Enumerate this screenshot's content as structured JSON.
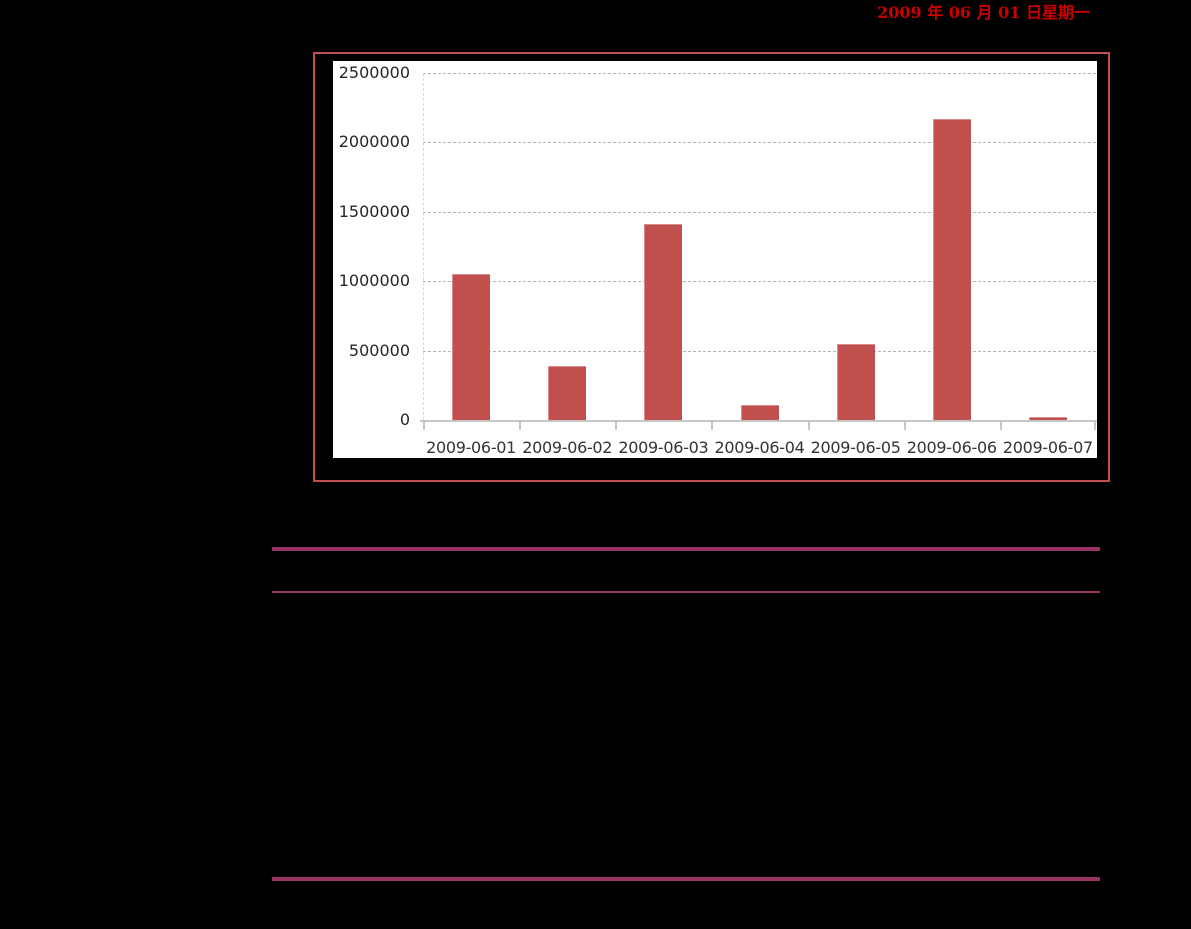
{
  "header": {
    "date_text": "2009 年 06 月 01 日星期一",
    "date_color": "#CC0000"
  },
  "chart_data": {
    "type": "bar",
    "title": "",
    "xlabel": "",
    "ylabel": "",
    "categories": [
      "2009-06-01",
      "2009-06-02",
      "2009-06-03",
      "2009-06-04",
      "2009-06-05",
      "2009-06-06",
      "2009-06-07"
    ],
    "values": [
      1050000,
      390000,
      1410000,
      110000,
      545000,
      2170000,
      20000
    ],
    "ylim": [
      0,
      2500000
    ],
    "yticks": [
      0,
      500000,
      1000000,
      1500000,
      2000000,
      2500000
    ],
    "grid": "horizontal-dashed",
    "legend_position": "none",
    "bar_color": "#C0504D",
    "frame_border_color": "#C0504D",
    "plot_background": "#FFFFFF"
  },
  "table_rules": {
    "color": "#993366",
    "count": 3,
    "note_visible_text": ""
  }
}
